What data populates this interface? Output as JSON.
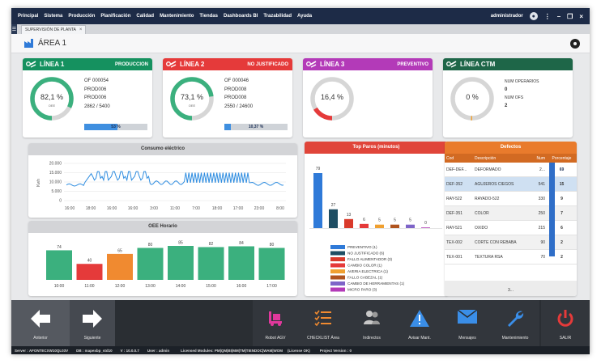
{
  "menu": [
    "Principal",
    "Sistema",
    "Producción",
    "Planificación",
    "Calidad",
    "Mantenimiento",
    "Tiendas",
    "Dashboards BI",
    "Trazabilidad",
    "Ayuda"
  ],
  "user": {
    "name": "administrador"
  },
  "window_controls": {
    "menu": "⋮",
    "minimize": "–",
    "maximize": "❐",
    "close": "×"
  },
  "tab": {
    "label": "SUPERVISIÓN DE PLANTA",
    "close": "×"
  },
  "area": {
    "title": "ÁREA 1"
  },
  "lines": [
    {
      "name": "LÍNEA 1",
      "status": "PRODUCCION",
      "color": "#15915f",
      "oee": "82,1 %",
      "oee_value": 82.1,
      "oee_sub": "OEE",
      "info": [
        "OF 000054",
        "PROD006",
        "PROD006",
        "2862 / 5400"
      ],
      "progress_label": "53 %",
      "progress": 53
    },
    {
      "name": "LÍNEA 2",
      "status": "NO JUSTIFICADO",
      "color": "#e53a3a",
      "oee": "73,1 %",
      "oee_value": 73.1,
      "oee_sub": "OEE",
      "info": [
        "OF 000046",
        "PROD008",
        "PROD008",
        "2550 / 24600"
      ],
      "progress_label": "10,37 %",
      "progress": 10.37
    },
    {
      "name": "LÍNEA 3",
      "status": "PREVENTIVO",
      "color": "#b33ab8",
      "oee": "16,4 %",
      "oee_value": 16.4,
      "oee_sub": "",
      "info": [],
      "progress_label": "",
      "progress": null
    },
    {
      "name": "LÍNEA CTM",
      "status": "",
      "color": "#1e6648",
      "oee": "0 %",
      "oee_value": 0,
      "oee_sub": "",
      "info": [
        "NUM OPERARIOS",
        "0",
        "NUM OFS",
        "2"
      ],
      "progress_label": "",
      "progress": null
    }
  ],
  "consumo": {
    "title": "Consumo eléctrico",
    "ylabel": "Kwh",
    "yticks": [
      "20.000",
      "15.000",
      "10.000",
      "5.000",
      "0"
    ],
    "xticks": [
      "16:00",
      "18:00",
      "16:00",
      "16:00",
      "3:00",
      "11:00",
      "7:00",
      "18:00",
      "17:00",
      "23:00",
      "8:00"
    ]
  },
  "oee_horario": {
    "title": "OEE Horario",
    "hours": [
      "10:00",
      "11:00",
      "12:00",
      "13:00",
      "14:00",
      "15:00",
      "16:00",
      "17:00"
    ],
    "values": [
      74,
      40,
      65,
      80,
      85,
      82,
      84,
      80
    ],
    "colors": [
      "#3bb07e",
      "#e53a3a",
      "#f08a30",
      "#3bb07e",
      "#3bb07e",
      "#3bb07e",
      "#3bb07e",
      "#3bb07e"
    ]
  },
  "top_paros": {
    "title": "Top Paros (minutos)",
    "values": [
      79,
      27,
      13,
      6,
      5,
      5,
      5,
      0
    ],
    "colors": [
      "#2f7ad8",
      "#1f4e63",
      "#d93a2b",
      "#e53a3a",
      "#f0a030",
      "#b0541f",
      "#7e64c8",
      "#b33ab8"
    ],
    "legend": [
      "PREVENTIVO (1)",
      "NO JUSTIFICADO (6)",
      "FALLO ALIMENTADOR (3)",
      "CAMBIO COLOR (1)",
      "AVERIA ELECTRICA (1)",
      "FALLO CABEZAL (1)",
      "CAMBIO DE HERRAMIENTAS (1)",
      "MICRO PARO (3)"
    ]
  },
  "defectos": {
    "title": "Defectos",
    "headers": [
      "Cod",
      "Descripción",
      "Num",
      "Porcentaje"
    ],
    "rows": [
      {
        "cod": "DEF-DEF...",
        "desc": "DEFORMADO",
        "num": "2...",
        "pct": "69"
      },
      {
        "cod": "DEF-352",
        "desc": "AGUJEROS CIEGOS",
        "num": "541",
        "pct": "15"
      },
      {
        "cod": "RAY-522",
        "desc": "RAYADO-522",
        "num": "330",
        "pct": "9"
      },
      {
        "cod": "DEF-351",
        "desc": "COLOR",
        "num": "250",
        "pct": "7"
      },
      {
        "cod": "RAY-521",
        "desc": "OXIDO",
        "num": "215",
        "pct": "6"
      },
      {
        "cod": "TEX-002",
        "desc": "CORTE CON REBABA",
        "num": "90",
        "pct": "2"
      },
      {
        "cod": "TEX-001",
        "desc": "TEXTURA RSA",
        "num": "70",
        "pct": "2"
      }
    ],
    "footer": "3..."
  },
  "toolbar": {
    "anterior": "Anterior",
    "siguiente": "Siguiente",
    "robot": "Robot AGV",
    "checklist": "CHECKLIST Área",
    "indirectos": "Indirectos",
    "avisar": "Avisar Mant.",
    "mensajes": "Mensajes",
    "mantenimiento": "Mantenimiento",
    "salir": "SALIR"
  },
  "status": {
    "server": "Server : AFONTECXW10QL03V",
    "db": "DB : mapexbp_std10",
    "version": "V : 10.0.0.7",
    "user": "User : admin",
    "modules": "Licensed Modules: PM|QM|BI|MM|TM|TIENDOC|WAM|WOM",
    "license": "(License OK)",
    "project": "Project Version : 0"
  }
}
